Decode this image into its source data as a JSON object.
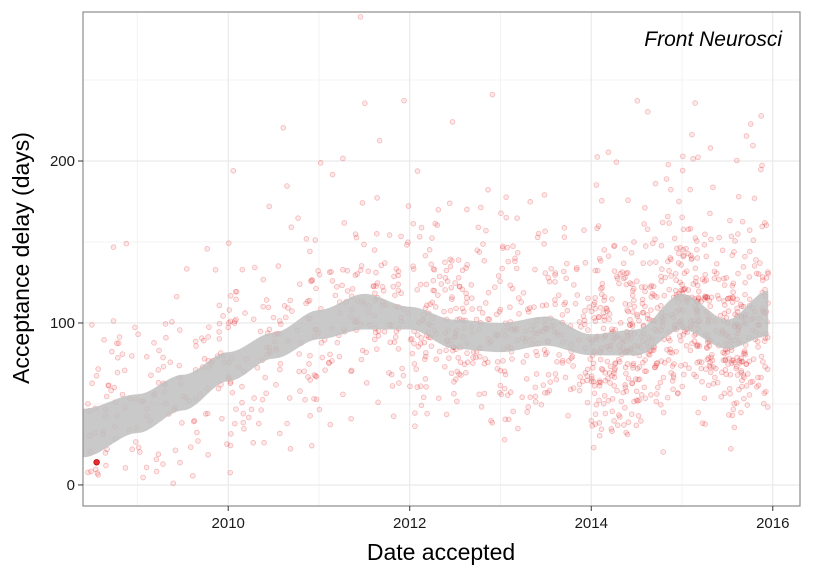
{
  "chart_data": {
    "type": "scatter",
    "annotation": "Front Neurosci",
    "xlabel": "Date accepted",
    "ylabel": "Acceptance delay (days)",
    "x_ticks": [
      "2010",
      "2012",
      "2014",
      "2016"
    ],
    "y_ticks": [
      "0",
      "100",
      "200"
    ],
    "x_tick_values": [
      2010,
      2012,
      2014,
      2016
    ],
    "y_tick_values": [
      0,
      100,
      200
    ],
    "xlim": [
      2008.4,
      2016.3
    ],
    "ylim": [
      -13,
      292
    ],
    "grid": true,
    "legend": "none",
    "point_color": "#e31a1c",
    "smooth_color": "#c0c0c0",
    "point_count_approx": 1500,
    "smooth": {
      "x": [
        2008.4,
        2009.0,
        2009.5,
        2010.0,
        2010.5,
        2011.0,
        2011.5,
        2012.0,
        2012.5,
        2013.0,
        2013.5,
        2014.0,
        2014.5,
        2015.0,
        2015.5,
        2015.95
      ],
      "lower": [
        17,
        32,
        46,
        64,
        78,
        90,
        96,
        96,
        84,
        82,
        86,
        80,
        80,
        96,
        84,
        92
      ],
      "upper": [
        47,
        56,
        68,
        82,
        94,
        108,
        118,
        110,
        102,
        100,
        104,
        93,
        96,
        118,
        102,
        120
      ]
    },
    "highlight_point": {
      "x": 2008.55,
      "y": 14
    }
  }
}
